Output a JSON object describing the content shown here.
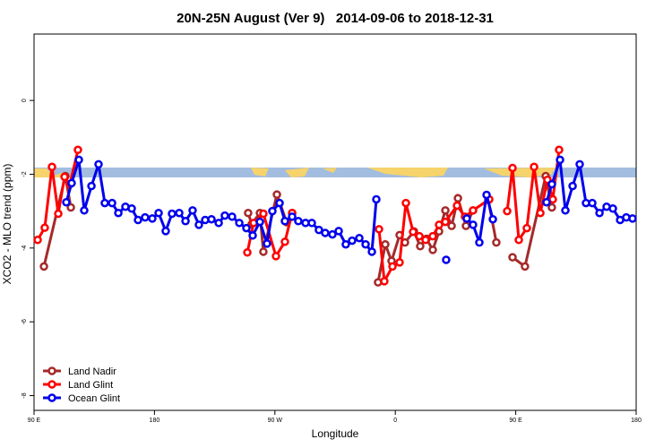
{
  "chart_data": {
    "type": "line",
    "title": "20N-25N August (Ver 9)   2014-09-06 to 2018-12-31",
    "xlabel": "Longitude",
    "ylabel": "XCO2 - MLO trend (ppm)",
    "xlim": [
      90,
      540
    ],
    "xticks": [
      {
        "value": 90,
        "label": "90 E"
      },
      {
        "value": 180,
        "label": "180"
      },
      {
        "value": 270,
        "label": "90 W"
      },
      {
        "value": 360,
        "label": "0"
      },
      {
        "value": 450,
        "label": "90 E"
      },
      {
        "value": 540,
        "label": "180"
      }
    ],
    "ylim": [
      -8.4,
      1.8
    ],
    "yticks": [
      0,
      -2,
      -4,
      -6,
      -8
    ],
    "legend": "bottom left",
    "series": [
      {
        "name": "Land Nadir",
        "color": "#a52a2a",
        "x": [
          97.4,
          113.4,
          117.5,
          null,
          250,
          252.7,
          258.8,
          261.4,
          271.5,
          278.8,
          282.9,
          null,
          347.1,
          352.5,
          357.2,
          363.2,
          367.2,
          373.9,
          378.6,
          383.3,
          388,
          392.7,
          397.4,
          402.1,
          406.8,
          412.8,
          418.1,
          null,
          429.5,
          435.5,
          null,
          447.6,
          456.9,
          472.4,
          477
        ],
        "values": [
          -4.5,
          -2.05,
          -2.9,
          null,
          -3.05,
          -3.35,
          -3.05,
          -4.1,
          -2.55,
          -3.3,
          -3.05,
          null,
          -4.93,
          -3.9,
          -4.35,
          -3.65,
          -3.85,
          -3.55,
          -3.95,
          -3.75,
          -4.05,
          -3.55,
          -2.98,
          -3.4,
          -2.65,
          -3.4,
          -2.98,
          null,
          -2.7,
          -3.85,
          null,
          -4.25,
          -4.5,
          -2.05,
          -2.9
        ]
      },
      {
        "name": "Land Glint",
        "color": "#ff0000",
        "x": [
          92.7,
          98,
          103.4,
          108.1,
          112.8,
          116.8,
          122.8,
          null,
          249.4,
          254.1,
          261.4,
          270.8,
          277.5,
          282.9,
          null,
          347.8,
          351.8,
          357.9,
          363.2,
          367.9,
          373.3,
          378,
          382.6,
          388,
          392.7,
          397.4,
          406.1,
          412.1,
          418.1,
          430.2,
          null,
          443.6,
          447.6,
          452.3,
          458.3,
          463.7,
          468.4,
          473.7,
          477.7,
          482.4
        ],
        "values": [
          -3.78,
          -3.45,
          -1.8,
          -3.07,
          -2.07,
          -2.27,
          -1.34,
          null,
          -4.12,
          -3.32,
          -3.07,
          -4.22,
          -3.83,
          -3.05,
          null,
          -3.49,
          -4.9,
          -4.5,
          -4.39,
          -2.78,
          -3.56,
          -3.68,
          -3.78,
          -3.68,
          -3.37,
          -3.29,
          -2.85,
          -3.15,
          -2.98,
          -2.68,
          null,
          -3.0,
          -1.83,
          -3.78,
          -3.46,
          -1.8,
          -3.05,
          -2.15,
          -2.68,
          -1.34
        ]
      },
      {
        "name": "Ocean Glint",
        "color": "#0000ee",
        "x": [
          114.1,
          118.1,
          123.5,
          127.5,
          132.9,
          138.2,
          142.9,
          148.3,
          153,
          158.3,
          163,
          167.7,
          173,
          178.4,
          183.1,
          188.4,
          193.1,
          198.5,
          203.2,
          208.5,
          213.2,
          217.9,
          222.6,
          228,
          232.6,
          238,
          243.4,
          248.7,
          253.4,
          258.8,
          264.1,
          268.1,
          273.5,
          277.5,
          282.9,
          287.5,
          292.9,
          297.6,
          302.9,
          307.6,
          313,
          317.7,
          323,
          327.7,
          333.1,
          337.8,
          342.5,
          345.8,
          null,
          398,
          null,
          413.4,
          418.1,
          422.8,
          428.2,
          432.9,
          null,
          473,
          477,
          483.1,
          487.1,
          492.5,
          497.8,
          502.5,
          507.2,
          512.6,
          517.9,
          522.6,
          528,
          532.6,
          537.3
        ],
        "values": [
          -2.76,
          -2.24,
          -1.61,
          -2.98,
          -2.32,
          -1.73,
          -2.78,
          -2.78,
          -3.05,
          -2.88,
          -2.93,
          -3.24,
          -3.17,
          -3.2,
          -3.05,
          -3.54,
          -3.07,
          -3.05,
          -3.27,
          -2.98,
          -3.37,
          -3.24,
          -3.22,
          -3.32,
          -3.12,
          -3.15,
          -3.32,
          -3.46,
          -3.66,
          -3.29,
          -3.88,
          -3.0,
          -2.78,
          -3.27,
          -3.15,
          -3.27,
          -3.32,
          -3.32,
          -3.51,
          -3.59,
          -3.63,
          -3.54,
          -3.9,
          -3.8,
          -3.73,
          -3.9,
          -4.1,
          -2.68,
          null,
          -4.32,
          null,
          -3.2,
          -3.37,
          -3.85,
          -2.56,
          -3.22,
          null,
          -2.76,
          -2.27,
          -1.61,
          -2.98,
          -2.32,
          -1.73,
          -2.78,
          -2.78,
          -3.05,
          -2.88,
          -2.93,
          -3.24,
          -3.17,
          -3.2
        ]
      }
    ]
  }
}
